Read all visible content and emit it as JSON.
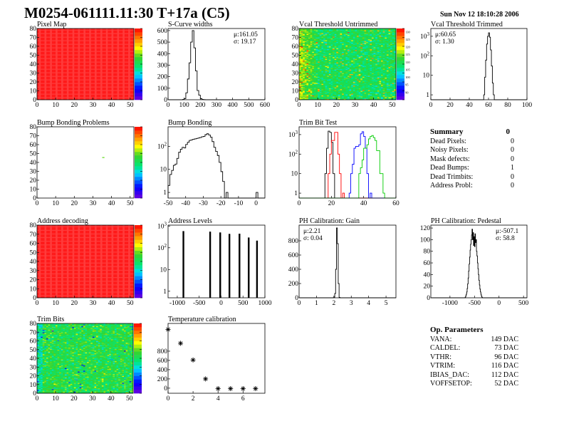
{
  "header": {
    "title": "M0254-061111.11:30 T+17a (C5)",
    "date": "Sun Nov 12 18:10:28 2006"
  },
  "summary": {
    "title": "Summary",
    "total": "0",
    "rows": [
      {
        "label": "Dead Pixels:",
        "value": "0"
      },
      {
        "label": "Noisy Pixels:",
        "value": "0"
      },
      {
        "label": "Mask defects:",
        "value": "0"
      },
      {
        "label": "Dead Bumps:",
        "value": "1"
      },
      {
        "label": "Dead Trimbits:",
        "value": "0"
      },
      {
        "label": "Address Probl:",
        "value": "0"
      }
    ]
  },
  "op_parameters": {
    "title": "Op. Parameters",
    "rows": [
      {
        "label": "VANA:",
        "value": "149 DAC"
      },
      {
        "label": "CALDEL:",
        "value": "73 DAC"
      },
      {
        "label": "VTHR:",
        "value": "96 DAC"
      },
      {
        "label": "VTRIM:",
        "value": "116 DAC"
      },
      {
        "label": "IBIAS_DAC:",
        "value": "112 DAC"
      },
      {
        "label": "VOFFSETOP:",
        "value": "52 DAC"
      }
    ]
  },
  "colors": {
    "palette": [
      "#6600cc",
      "#0000ff",
      "#00ccff",
      "#00ff66",
      "#33cc33",
      "#ffff00",
      "#ff9900",
      "#ff0000"
    ],
    "hist_line": "#000000"
  },
  "chart_data": [
    {
      "type": "heatmap",
      "title": "Pixel Map",
      "xlim": [
        0,
        52
      ],
      "ylim": [
        0,
        80
      ],
      "xticks": [
        0,
        10,
        20,
        30,
        40,
        50
      ],
      "yticks": [
        0,
        10,
        20,
        30,
        40,
        50,
        60,
        70,
        80
      ],
      "zlim": [
        0,
        10
      ],
      "pattern": "uniform",
      "uniform_value": 10
    },
    {
      "type": "histogram",
      "title": "S-Curve widths",
      "xlim": [
        0,
        600
      ],
      "ylim": [
        0,
        618
      ],
      "xticks": [
        0,
        100,
        200,
        300,
        400,
        500,
        600
      ],
      "yticks": [
        0,
        100,
        200,
        300,
        400,
        500,
        600
      ],
      "stats": [
        "μ:161.05",
        "σ: 19.17"
      ],
      "series": [
        {
          "color": "#000000",
          "start": 90,
          "width": 10,
          "values": [
            3,
            10,
            60,
            180,
            320,
            500,
            600,
            450,
            250,
            80,
            40,
            10,
            3,
            1
          ]
        }
      ]
    },
    {
      "type": "heatmap",
      "title": "Vcal Threshold Untrimmed",
      "xlim": [
        0,
        52
      ],
      "ylim": [
        0,
        80
      ],
      "xticks": [
        0,
        10,
        20,
        30,
        40,
        50
      ],
      "yticks": [
        0,
        10,
        20,
        30,
        40,
        50,
        60,
        70,
        80
      ],
      "zlim": [
        85,
        132
      ],
      "zticks": [
        90,
        95,
        100,
        105,
        110,
        115,
        120,
        125,
        130
      ],
      "pattern": "untrimmed"
    },
    {
      "type": "histogram",
      "title": "Vcal Threshold Trimmed",
      "log": true,
      "xlim": [
        0,
        100
      ],
      "ylim": [
        0.56,
        2500
      ],
      "xticks": [
        0,
        20,
        40,
        60,
        80,
        100
      ],
      "yticks": [
        1,
        10,
        100,
        1000
      ],
      "stats": [
        "μ:60.65",
        "σ: 1.30"
      ],
      "series": [
        {
          "color": "#000000",
          "start": 55,
          "width": 1,
          "values": [
            1,
            8,
            60,
            400,
            1000,
            1500,
            900,
            200,
            30,
            4,
            1
          ]
        }
      ]
    },
    {
      "type": "heatmap",
      "title": "Bump Bonding Problems",
      "xlim": [
        0,
        52
      ],
      "ylim": [
        0,
        80
      ],
      "xticks": [
        0,
        10,
        20,
        30,
        40,
        50
      ],
      "yticks": [
        0,
        10,
        20,
        30,
        40,
        50,
        60,
        70,
        80
      ],
      "zlim": [
        -2,
        2
      ],
      "pattern": "single",
      "points": [
        [
          35,
          45,
          0.5
        ]
      ]
    },
    {
      "type": "histogram",
      "title": "Bump Bonding",
      "log": true,
      "xlim": [
        -50,
        5
      ],
      "ylim": [
        0.57,
        700
      ],
      "xticks": [
        -50,
        -40,
        -30,
        -20,
        -10,
        0
      ],
      "yticks": [
        1,
        10,
        100
      ],
      "series": [
        {
          "color": "#000000",
          "start": -50,
          "width": 1,
          "values": [
            2,
            6,
            9,
            15,
            17,
            30,
            55,
            75,
            90,
            85,
            120,
            150,
            180,
            190,
            200,
            210,
            220,
            230,
            240,
            260,
            270,
            320,
            350,
            310,
            250,
            160,
            90,
            60,
            40,
            20,
            8,
            3,
            0,
            1,
            0,
            0,
            0,
            0,
            0,
            0,
            0,
            0,
            0,
            0,
            0,
            0,
            0,
            0,
            0,
            0,
            1
          ]
        }
      ]
    },
    {
      "type": "histogram",
      "title": "Trim Bit Test",
      "log": true,
      "xlim": [
        0,
        60
      ],
      "ylim": [
        0.56,
        2500
      ],
      "xticks": [
        0,
        20,
        40,
        60
      ],
      "yticks": [
        1,
        10,
        100,
        1000
      ],
      "series": [
        {
          "color": "#000000",
          "start": 16,
          "width": 1,
          "values": [
            10,
            200,
            1500,
            1300,
            400,
            10
          ]
        },
        {
          "color": "#ff0000",
          "start": 18,
          "width": 1,
          "values": [
            10,
            100,
            500,
            500,
            1300,
            1300,
            100,
            10,
            0,
            1
          ]
        },
        {
          "color": "#0000ff",
          "start": 31,
          "width": 1,
          "values": [
            1,
            10,
            30,
            200,
            250,
            250,
            300,
            1100,
            1400,
            800,
            200,
            10,
            0,
            1
          ]
        },
        {
          "color": "#00cc00",
          "start": 37,
          "width": 1,
          "values": [
            10,
            20,
            50,
            200,
            200,
            300,
            600,
            800,
            900,
            700,
            500,
            150,
            150,
            10,
            10,
            1
          ]
        }
      ]
    },
    {
      "type": "heatmap",
      "title": "Address decoding",
      "xlim": [
        0,
        52
      ],
      "ylim": [
        0,
        80
      ],
      "xticks": [
        0,
        10,
        20,
        30,
        40,
        50
      ],
      "yticks": [
        0,
        10,
        20,
        30,
        40,
        50,
        60,
        70,
        80
      ],
      "zlim": [
        0,
        10
      ],
      "pattern": "uniform",
      "uniform_value": 10
    },
    {
      "type": "histogram",
      "title": "Address Levels",
      "log": true,
      "xlim": [
        -1210,
        1000
      ],
      "ylim": [
        0.5,
        1100
      ],
      "xticks": [
        -1000,
        -500,
        0,
        500,
        1000
      ],
      "yticks": [
        1,
        10,
        100,
        1000
      ],
      "series": [
        {
          "color": "#000000",
          "peaks": [
            [
              -860,
              550
            ],
            [
              -250,
              520
            ],
            [
              -20,
              480
            ],
            [
              190,
              410
            ],
            [
              420,
              420
            ],
            [
              630,
              280
            ],
            [
              820,
              200
            ]
          ]
        }
      ]
    },
    {
      "type": "histogram",
      "title": "PH Calibration: Gain",
      "xlim": [
        0,
        5.57
      ],
      "ylim": [
        0,
        1020
      ],
      "xticks": [
        0,
        1,
        2,
        3,
        4,
        5
      ],
      "yticks": [
        0,
        200,
        400,
        600,
        800
      ],
      "stats": [
        "μ:2.21",
        "σ: 0.04"
      ],
      "series": [
        {
          "color": "#000000",
          "start": 1.95,
          "width": 0.05,
          "values": [
            2,
            10,
            60,
            400,
            980,
            760,
            200,
            5
          ]
        }
      ]
    },
    {
      "type": "histogram",
      "title": "PH Calibration: Pedestal",
      "xlim": [
        -1390,
        570
      ],
      "ylim": [
        0,
        125
      ],
      "xticks": [
        -1000,
        -500,
        0,
        500
      ],
      "yticks": [
        0,
        20,
        40,
        60,
        80,
        100,
        120
      ],
      "stats": [
        "μ:-507.1",
        "σ: 58.8"
      ],
      "series": [
        {
          "color": "#000000",
          "start": -690,
          "width": 10,
          "values": [
            1,
            3,
            6,
            10,
            16,
            24,
            34,
            46,
            58,
            70,
            82,
            92,
            100,
            108,
            118,
            100,
            112,
            90,
            105,
            88,
            110,
            95,
            100,
            80,
            72,
            60,
            50,
            40,
            30,
            22,
            15,
            10,
            6,
            3,
            1
          ]
        }
      ]
    },
    {
      "type": "heatmap",
      "title": "Trim Bits",
      "xlim": [
        0,
        52
      ],
      "ylim": [
        0,
        80
      ],
      "xticks": [
        0,
        10,
        20,
        30,
        40,
        50
      ],
      "yticks": [
        0,
        10,
        20,
        30,
        40,
        50,
        60,
        70,
        80
      ],
      "zlim": [
        0,
        16
      ],
      "pattern": "trimbits"
    },
    {
      "type": "scatter",
      "title": "Temperature calibration",
      "xlim": [
        0,
        7.75
      ],
      "ylim": [
        -110,
        1400
      ],
      "xticks": [
        0,
        2,
        4,
        6
      ],
      "yticks": [
        0,
        200,
        400,
        600,
        800
      ],
      "x": [
        0,
        1,
        2,
        3,
        4,
        5,
        6,
        7
      ],
      "y": [
        1270,
        970,
        610,
        200,
        -10,
        -10,
        -10,
        -10
      ],
      "marker": "asterisk"
    }
  ]
}
